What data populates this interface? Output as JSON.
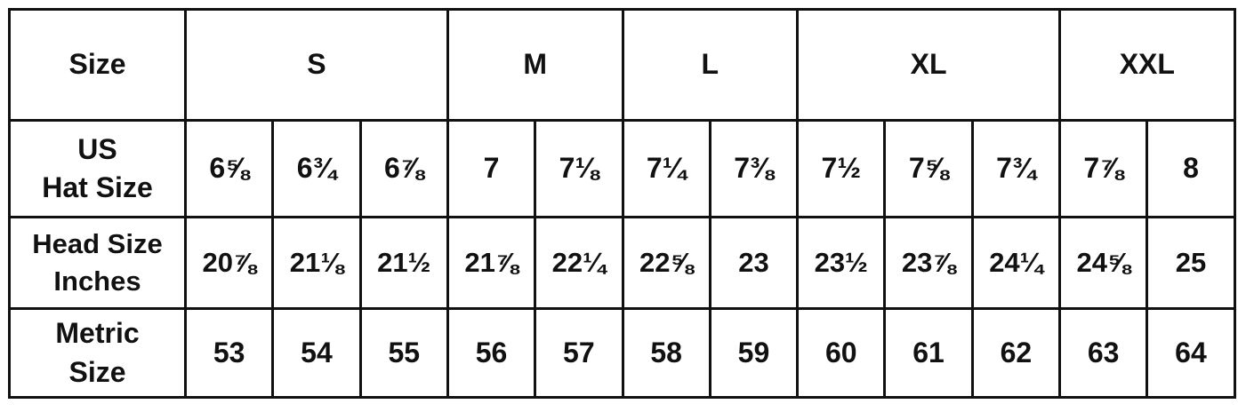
{
  "header": {
    "label": "Size",
    "groups": [
      {
        "label": "S",
        "span": 3
      },
      {
        "label": "M",
        "span": 2
      },
      {
        "label": "L",
        "span": 2
      },
      {
        "label": "XL",
        "span": 3
      },
      {
        "label": "XXL",
        "span": 2
      }
    ]
  },
  "rows": [
    {
      "label": "US\nHat Size",
      "values": [
        "6⅝",
        "6¾",
        "6⅞",
        "7",
        "7⅛",
        "7¼",
        "7⅜",
        "7½",
        "7⅝",
        "7¾",
        "7⅞",
        "8"
      ]
    },
    {
      "label": "Head Size\nInches",
      "values": [
        "20⅞",
        "21⅛",
        "21½",
        "21⅞",
        "22¼",
        "22⅝",
        "23",
        "23½",
        "23⅞",
        "24¼",
        "24⅝",
        "25"
      ]
    },
    {
      "label": "Metric\nSize",
      "values": [
        "53",
        "54",
        "55",
        "56",
        "57",
        "58",
        "59",
        "60",
        "61",
        "62",
        "63",
        "64"
      ]
    }
  ]
}
